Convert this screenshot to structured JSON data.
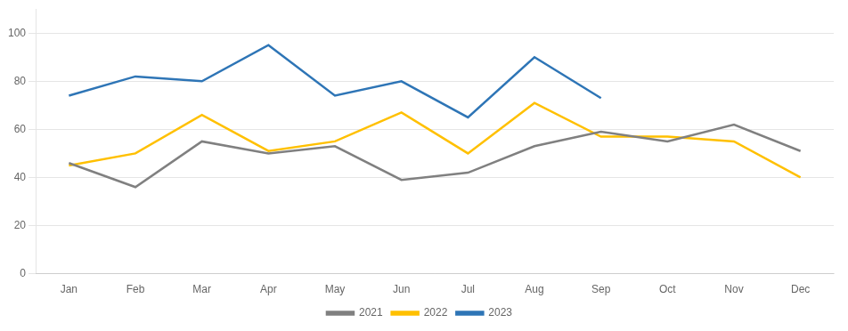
{
  "chart_data": {
    "type": "line",
    "categories": [
      "Jan",
      "Feb",
      "Mar",
      "Apr",
      "May",
      "Jun",
      "Jul",
      "Aug",
      "Sep",
      "Oct",
      "Nov",
      "Dec"
    ],
    "series": [
      {
        "name": "2021",
        "color": "#808080",
        "values": [
          46,
          36,
          55,
          50,
          53,
          39,
          42,
          53,
          59,
          55,
          62,
          51
        ]
      },
      {
        "name": "2022",
        "color": "#FFC000",
        "values": [
          45,
          50,
          66,
          51,
          55,
          67,
          50,
          71,
          57,
          57,
          55,
          40
        ]
      },
      {
        "name": "2023",
        "color": "#2E75B6",
        "values": [
          74,
          82,
          80,
          95,
          74,
          80,
          65,
          90,
          73,
          null,
          null,
          null
        ]
      }
    ],
    "ylim": [
      0,
      110
    ],
    "yticks": [
      0,
      20,
      40,
      60,
      80,
      100
    ],
    "grid": true,
    "legend": "bottom"
  }
}
